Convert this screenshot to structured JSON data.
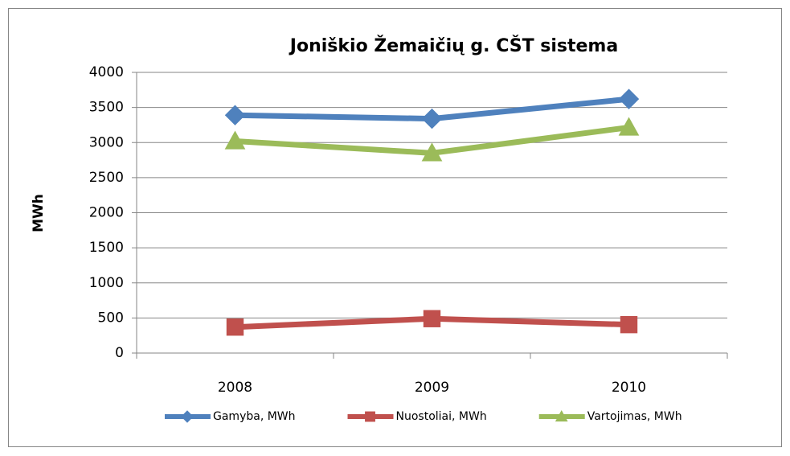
{
  "chart_data": {
    "type": "line",
    "title": "Joniškio Žemaičių g. CŠT sistema",
    "y_label": "MWh",
    "categories": [
      "2008",
      "2009",
      "2010"
    ],
    "series": [
      {
        "name": "Gamyba, MWh",
        "color": "#4f81bd",
        "marker": "diamond",
        "values": [
          3390,
          3340,
          3620
        ]
      },
      {
        "name": "Nuostoliai, MWh",
        "color": "#c0504d",
        "marker": "square",
        "values": [
          370,
          490,
          405
        ]
      },
      {
        "name": "Vartojimas, MWh",
        "color": "#9bbb59",
        "marker": "triangle",
        "values": [
          3020,
          2850,
          3215
        ]
      }
    ],
    "ylim": [
      0,
      4000
    ],
    "yticks": [
      0,
      500,
      1000,
      1500,
      2000,
      2500,
      3000,
      3500,
      4000
    ],
    "grid": true,
    "legend": "bottom"
  }
}
